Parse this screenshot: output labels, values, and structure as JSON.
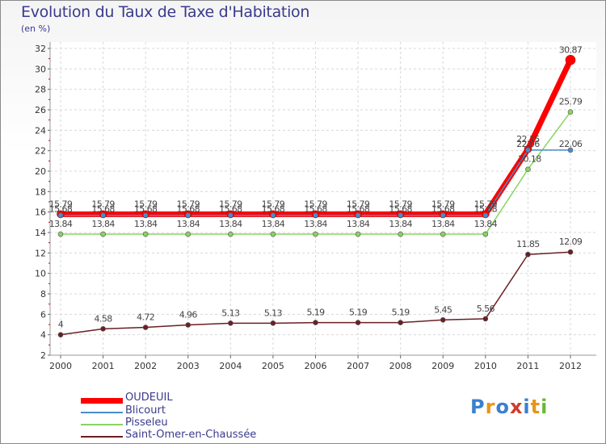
{
  "title": "Evolution du Taux de Taxe d'Habitation",
  "subtitle": "(en %)",
  "logo": {
    "chars": [
      "P",
      "r",
      "o",
      "x",
      "i",
      "t",
      "i"
    ],
    "colors": [
      "#3b7fd0",
      "#e8941b",
      "#3b7fd0",
      "#d23b2c",
      "#3b7fd0",
      "#e8941b",
      "#68b83a"
    ]
  },
  "chart_data": {
    "type": "line",
    "categories": [
      "2000",
      "2001",
      "2002",
      "2003",
      "2004",
      "2005",
      "2006",
      "2007",
      "2008",
      "2009",
      "2010",
      "2011",
      "2012"
    ],
    "ylim": [
      2,
      32
    ],
    "yticks": [
      "2",
      "4",
      "6",
      "8",
      "10",
      "12",
      "14",
      "16",
      "18",
      "20",
      "22",
      "24",
      "26",
      "28",
      "30",
      "32"
    ],
    "series": [
      {
        "name": "OUDEUIL",
        "color": "#ff0000",
        "values": [
          15.79,
          15.79,
          15.79,
          15.79,
          15.79,
          15.79,
          15.79,
          15.79,
          15.79,
          15.79,
          15.79,
          22.15,
          30.87
        ],
        "labels": [
          "15.79",
          "15.79",
          "15.79",
          "15.79",
          "15.79",
          "15.79",
          "15.79",
          "15.79",
          "15.79",
          "15.79",
          "15.79",
          "22.15",
          "30.87"
        ]
      },
      {
        "name": "Blicourt",
        "color": "#4a8ccc",
        "values": [
          15.68,
          15.68,
          15.68,
          15.68,
          15.68,
          15.68,
          15.68,
          15.68,
          15.68,
          15.68,
          15.68,
          22.06,
          22.06
        ],
        "labels": [
          "15.68",
          "15.68",
          "15.68",
          "15.68",
          "15.68",
          "15.68",
          "15.68",
          "15.68",
          "15.68",
          "15.68",
          "15.68",
          "22.06",
          "22.06"
        ]
      },
      {
        "name": "Pisseleu",
        "color": "#88d460",
        "values": [
          13.84,
          13.84,
          13.84,
          13.84,
          13.84,
          13.84,
          13.84,
          13.84,
          13.84,
          13.84,
          13.84,
          20.18,
          25.79
        ],
        "labels": [
          "13.84",
          "13.84",
          "13.84",
          "13.84",
          "13.84",
          "13.84",
          "13.84",
          "13.84",
          "13.84",
          "13.84",
          "13.84",
          "20.18",
          "25.79"
        ]
      },
      {
        "name": "Saint-Omer-en-Chaussée",
        "color": "#6b1f24",
        "values": [
          4,
          4.58,
          4.72,
          4.96,
          5.13,
          5.13,
          5.19,
          5.19,
          5.19,
          5.45,
          5.56,
          11.85,
          12.09
        ],
        "labels": [
          "4",
          "4.58",
          "4.72",
          "4.96",
          "5.13",
          "5.13",
          "5.19",
          "5.19",
          "5.19",
          "5.45",
          "5.56",
          "11.85",
          "12.09"
        ]
      }
    ]
  }
}
